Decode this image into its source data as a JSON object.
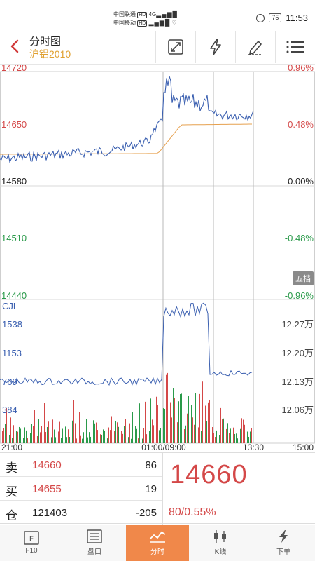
{
  "status_bar": {
    "carrier_1": "中国联通",
    "carrier_2": "中国移动",
    "hd_1": "HD",
    "hd_2": "HD",
    "net_type": "4G",
    "battery": "75",
    "time": "11:53"
  },
  "header": {
    "title": "分时图",
    "subtitle": "沪铝2010"
  },
  "chart": {
    "price_labels_left": [
      "14720",
      "14650",
      "14580",
      "14510",
      "14440"
    ],
    "pct_labels_right": [
      "0.96%",
      "0.48%",
      "0.00%",
      "-0.48%",
      "-0.96%"
    ],
    "volume_label": "CJL",
    "volume_labels_left": [
      "1538",
      "1153",
      "769",
      "384"
    ],
    "oi_labels_right": [
      "12.27万",
      "12.20万",
      "12.13万",
      "12.06万"
    ],
    "time_labels": [
      "21:00",
      "01:00/09:00",
      "13:30",
      "15:00"
    ],
    "five_levels_button": "五档",
    "colors": {
      "up": "#d44848",
      "down": "#2a9a4a",
      "price_line": "#3a5fb0",
      "avg_line": "#e6a04e",
      "grid": "#d9d9d9"
    }
  },
  "quote": {
    "sell_label": "卖",
    "sell_price": "14660",
    "sell_volume": "86",
    "buy_label": "买",
    "buy_price": "14655",
    "buy_volume": "19",
    "oi_label": "仓",
    "open_interest": "121403",
    "oi_change": "-205",
    "last_price": "14660",
    "change_text": "80/0.55%"
  },
  "tabs": [
    {
      "label": "F10",
      "icon": "f10-icon"
    },
    {
      "label": "盘口",
      "icon": "orderbook-icon"
    },
    {
      "label": "分时",
      "icon": "timeshare-icon",
      "active": true
    },
    {
      "label": "K线",
      "icon": "candlestick-icon"
    },
    {
      "label": "下单",
      "icon": "lightning-icon"
    }
  ]
}
